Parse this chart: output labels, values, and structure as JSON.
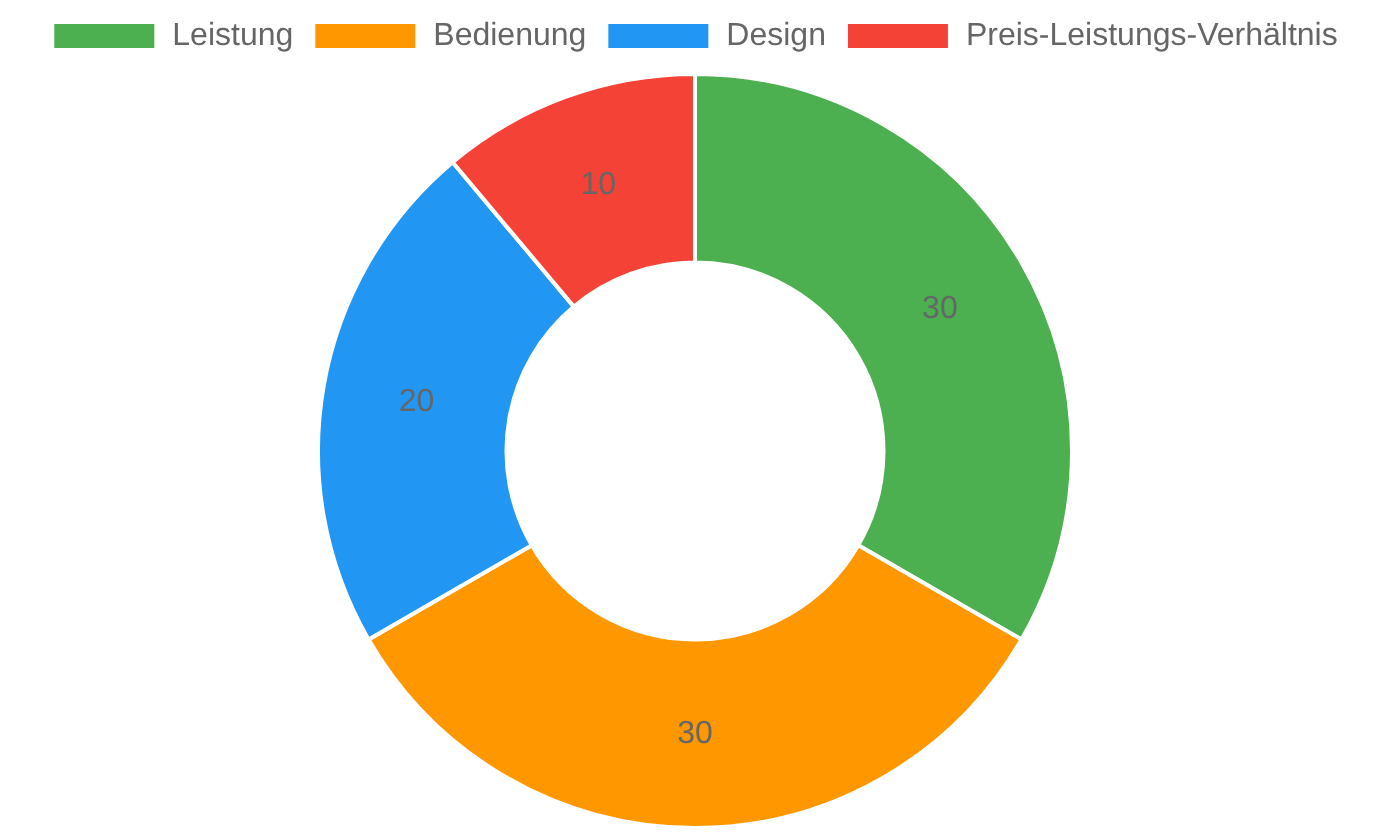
{
  "chart_data": {
    "type": "donut",
    "categories": [
      "Leistung",
      "Bedienung",
      "Design",
      "Preis-Leistungs-Verhältnis"
    ],
    "values": [
      30,
      30,
      20,
      10
    ],
    "colors": [
      "#4caf50",
      "#ff9800",
      "#2196f3",
      "#f44336"
    ],
    "data_labels": true,
    "legend": "top"
  }
}
